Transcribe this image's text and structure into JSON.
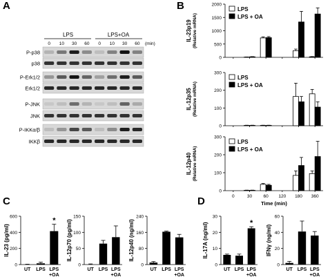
{
  "panel_labels": {
    "A": "A",
    "B": "B",
    "C": "C",
    "D": "D"
  },
  "blot": {
    "groups": [
      {
        "label": "LPS"
      },
      {
        "label": "LPS+OA"
      }
    ],
    "timepoints": [
      "0",
      "10",
      "30",
      "60",
      "0",
      "10",
      "30",
      "60"
    ],
    "time_unit": "(min)",
    "rows": [
      {
        "label": "P-p38",
        "intensity": [
          0.15,
          0.45,
          0.9,
          0.35,
          0.1,
          0.4,
          0.95,
          0.4
        ]
      },
      {
        "label": "p38",
        "intensity": [
          0.8,
          0.8,
          0.8,
          0.8,
          0.8,
          0.8,
          0.8,
          0.8
        ]
      },
      {
        "label": "P-Erk1/2",
        "intensity": [
          0.3,
          0.6,
          0.95,
          0.55,
          0.25,
          0.5,
          0.9,
          0.6
        ]
      },
      {
        "label": "Erk1/2",
        "intensity": [
          0.85,
          0.85,
          0.85,
          0.85,
          0.85,
          0.85,
          0.85,
          0.85
        ]
      },
      {
        "label": "P-JNK",
        "intensity": [
          0.05,
          0.1,
          0.5,
          0.15,
          0.05,
          0.1,
          0.55,
          0.2
        ]
      },
      {
        "label": "JNK",
        "intensity": [
          0.8,
          0.8,
          0.8,
          0.8,
          0.8,
          0.8,
          0.8,
          0.8
        ]
      },
      {
        "label": "P-IKKα/β",
        "intensity": [
          0.1,
          0.3,
          0.7,
          0.6,
          0.1,
          0.35,
          0.9,
          0.85
        ]
      },
      {
        "label": "IKKβ",
        "intensity": [
          0.85,
          0.85,
          0.85,
          0.85,
          0.85,
          0.85,
          0.85,
          0.85
        ]
      }
    ]
  },
  "chart_data": [
    {
      "type": "bar",
      "id": "B1",
      "x": [
        "0",
        "30",
        "60",
        "120",
        "180",
        "360"
      ],
      "ylabel": "IL-23p19",
      "ylabel2": "(Relative mRNA)",
      "ylim": [
        0,
        2000
      ],
      "yticks": [
        0,
        500,
        1000,
        1500,
        2000
      ],
      "series": [
        {
          "name": "LPS",
          "values": [
            0,
            10,
            730,
            0,
            250,
            20
          ],
          "err": [
            0,
            5,
            40,
            0,
            60,
            10
          ]
        },
        {
          "name": "LPS + OA",
          "values": [
            0,
            20,
            740,
            0,
            1330,
            1630
          ],
          "err": [
            0,
            8,
            40,
            0,
            400,
            230
          ]
        }
      ]
    },
    {
      "type": "bar",
      "id": "B2",
      "x": [
        "0",
        "30",
        "60",
        "120",
        "180",
        "360"
      ],
      "ylabel": "IL-12p35",
      "ylabel2": "(Relative mRNA)",
      "ylim": [
        0,
        300
      ],
      "yticks": [
        0,
        100,
        200,
        300
      ],
      "series": [
        {
          "name": "LPS",
          "values": [
            0,
            2,
            2,
            0,
            165,
            180
          ],
          "err": [
            0,
            1,
            1,
            0,
            75,
            25
          ]
        },
        {
          "name": "LPS + OA",
          "values": [
            0,
            2,
            2,
            0,
            135,
            105
          ],
          "err": [
            0,
            1,
            1,
            0,
            30,
            30
          ]
        }
      ]
    },
    {
      "type": "bar",
      "id": "B3",
      "x": [
        "0",
        "30",
        "60",
        "120",
        "180",
        "360"
      ],
      "ylabel": "IL-12p40",
      "ylabel2": "(Relative mRNA)",
      "xlabel": "Time (min)",
      "ylim": [
        0,
        300
      ],
      "yticks": [
        0,
        100,
        200,
        300
      ],
      "series": [
        {
          "name": "LPS",
          "values": [
            0,
            2,
            35,
            0,
            85,
            95
          ],
          "err": [
            0,
            1,
            5,
            0,
            25,
            15
          ]
        },
        {
          "name": "LPS + OA",
          "values": [
            0,
            2,
            30,
            0,
            140,
            190
          ],
          "err": [
            0,
            1,
            5,
            0,
            45,
            85
          ]
        }
      ]
    },
    {
      "type": "bar",
      "id": "C1",
      "categories": [
        "UT",
        "LPS",
        "LPS\n+OA"
      ],
      "values": [
        0,
        15,
        415
      ],
      "err": [
        5,
        15,
        85
      ],
      "ylabel": "IL-23 (pg/ml)",
      "ylim": [
        0,
        600
      ],
      "yticks": [
        0,
        200,
        400,
        600
      ],
      "sig": [
        2
      ]
    },
    {
      "type": "bar",
      "id": "C2",
      "categories": [
        "UT",
        "LPS",
        "LPS\n+OA"
      ],
      "values": [
        0,
        65,
        85
      ],
      "err": [
        2,
        10,
        35
      ],
      "ylabel": "IL-12p70 (pg/ml)",
      "ylim": [
        0,
        150
      ],
      "yticks": [
        0,
        50,
        100,
        150
      ]
    },
    {
      "type": "bar",
      "id": "C3",
      "categories": [
        "UT",
        "LPS",
        "LPS\n+OA"
      ],
      "values": [
        10,
        163,
        135
      ],
      "err": [
        5,
        3,
        15
      ],
      "ylabel": "IL-12p40 (ng/ml)",
      "ylim": [
        0,
        240
      ],
      "yticks": [
        0,
        80,
        160,
        240
      ]
    },
    {
      "type": "bar",
      "id": "D1",
      "categories": [
        "UT",
        "LPS",
        "LPS\n+OA"
      ],
      "values": [
        6,
        5.5,
        22.5
      ],
      "err": [
        0.5,
        1,
        1
      ],
      "ylabel": "IL-17A (ng/ml)",
      "ylim": [
        0,
        30
      ],
      "yticks": [
        0,
        10,
        20,
        30
      ],
      "sig": [
        2
      ]
    },
    {
      "type": "bar",
      "id": "D2",
      "categories": [
        "UT",
        "LPS",
        "LPS\n+OA"
      ],
      "values": [
        2,
        41,
        36
      ],
      "err": [
        2,
        13,
        5
      ],
      "ylabel": "IFNγ (ng/ml)",
      "ylim": [
        0,
        60
      ],
      "yticks": [
        0,
        20,
        40,
        60
      ]
    }
  ]
}
